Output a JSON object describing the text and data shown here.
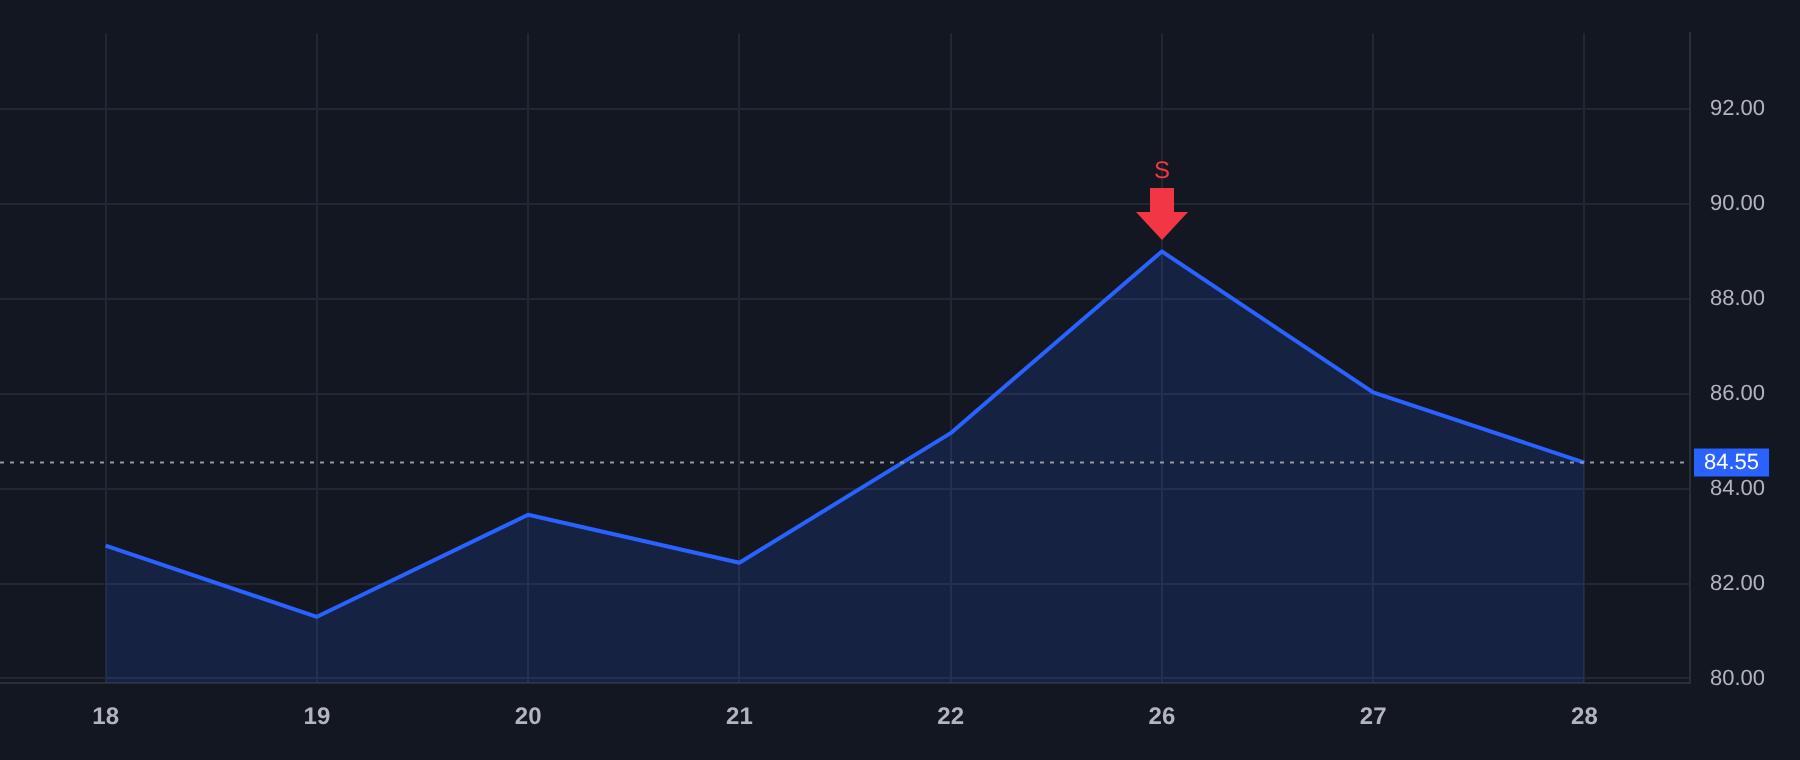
{
  "chart_data": {
    "type": "area",
    "categories": [
      "18",
      "19",
      "20",
      "21",
      "22",
      "26",
      "27",
      "28"
    ],
    "series": [
      {
        "color": "#2962ff",
        "values": [
          82.8,
          81.3,
          83.45,
          82.44,
          85.17,
          89.0,
          86.03,
          84.55
        ]
      }
    ],
    "ylim": [
      79.9,
      93.6
    ],
    "yticks": [
      {
        "value": 80,
        "label": "80.00"
      },
      {
        "value": 82,
        "label": "82.00"
      },
      {
        "value": 84,
        "label": "84.00"
      },
      {
        "value": 86,
        "label": "86.00"
      },
      {
        "value": 88,
        "label": "88.00"
      },
      {
        "value": 90,
        "label": "90.00"
      },
      {
        "value": 92,
        "label": "92.00"
      }
    ],
    "ref_lines": [
      {
        "axis": "y",
        "value": 84.55,
        "label": "84.55",
        "color": "#9598a1",
        "line_style": "dotted"
      }
    ],
    "annotations": [
      {
        "text": "S",
        "x": "26",
        "y": 89
      }
    ],
    "grid": true,
    "legend": false
  }
}
